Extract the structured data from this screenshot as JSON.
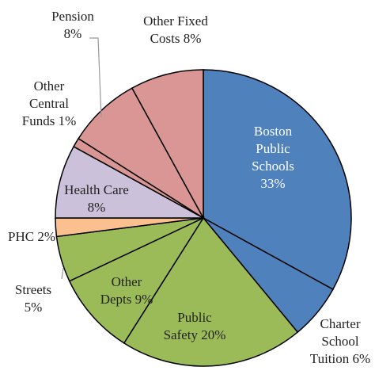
{
  "chart_data": {
    "type": "pie",
    "categories": [
      "Boston Public Schools",
      "Charter School Tuition",
      "Public Safety",
      "Other Depts",
      "Streets",
      "PHC",
      "Health Care",
      "Other Central Funds",
      "Pension",
      "Other Fixed Costs"
    ],
    "values": [
      33,
      6,
      20,
      9,
      5,
      2,
      8,
      1,
      8,
      8
    ],
    "value_labels": [
      "33%",
      "6%",
      "20%",
      "9%",
      "5%",
      "2%",
      "8%",
      "1%",
      "8%",
      "8%"
    ],
    "colors": [
      "#4f81bd",
      "#4f81bd",
      "#9bbb59",
      "#9bbb59",
      "#9bbb59",
      "#fac090",
      "#ccc1da",
      "#d99694",
      "#d99694",
      "#d99694"
    ]
  }
}
